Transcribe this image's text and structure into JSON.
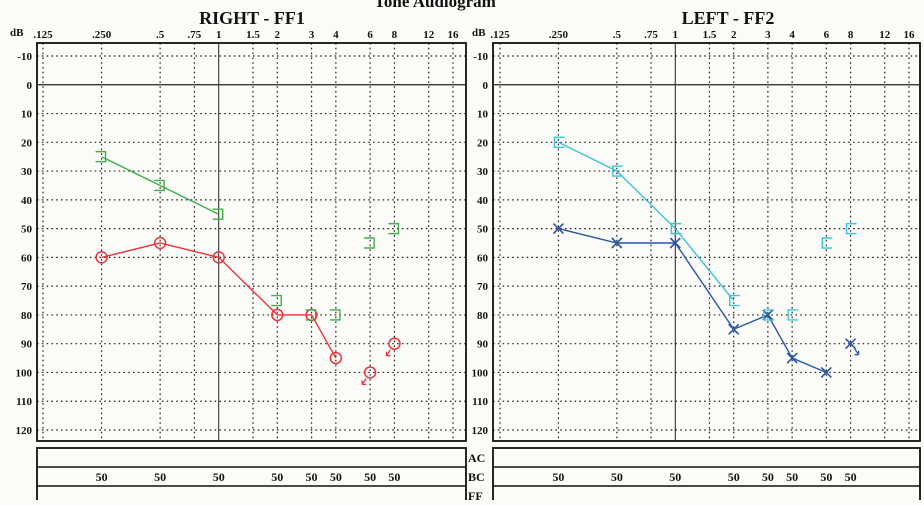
{
  "header": {
    "title": "Tone Audiogram"
  },
  "chart_data": [
    {
      "type": "line",
      "title": "RIGHT - FF1",
      "ylabel": "dB",
      "y_reversed": true,
      "ylim": [
        -10,
        120
      ],
      "yticks": [
        "-10",
        "0",
        "10",
        "20",
        "30",
        "40",
        "50",
        "60",
        "70",
        "80",
        "90",
        "100",
        "110",
        "120"
      ],
      "x_scale": "log",
      "x_ticks": [
        {
          "f": 0.125,
          "label": ".125"
        },
        {
          "f": 0.25,
          "label": ".250"
        },
        {
          "f": 0.5,
          "label": ".5"
        },
        {
          "f": 0.75,
          "label": ".75"
        },
        {
          "f": 1,
          "label": "1"
        },
        {
          "f": 1.5,
          "label": "1.5"
        },
        {
          "f": 2,
          "label": "2"
        },
        {
          "f": 3,
          "label": "3"
        },
        {
          "f": 4,
          "label": "4"
        },
        {
          "f": 6,
          "label": "6"
        },
        {
          "f": 8,
          "label": "8"
        },
        {
          "f": 12,
          "label": "12"
        },
        {
          "f": 16,
          "label": "16"
        }
      ],
      "series": [
        {
          "symbol": "circle",
          "color": "#e8353d",
          "connected_x": [
            0.25,
            0.5,
            1,
            2,
            3,
            4
          ],
          "connected_y": [
            60,
            55,
            60,
            80,
            80,
            95
          ],
          "points": [
            {
              "x": 0.25,
              "y": 60
            },
            {
              "x": 0.5,
              "y": 55
            },
            {
              "x": 1,
              "y": 60
            },
            {
              "x": 2,
              "y": 80
            },
            {
              "x": 3,
              "y": 80
            },
            {
              "x": 4,
              "y": 95
            },
            {
              "x": 6,
              "y": 100,
              "no_response": true
            },
            {
              "x": 8,
              "y": 90,
              "no_response": true
            }
          ]
        },
        {
          "symbol": "bracket-right",
          "color": "#3fae49",
          "connected_x": [
            0.25,
            0.5,
            1
          ],
          "connected_y": [
            25,
            35,
            45
          ],
          "points": [
            {
              "x": 0.25,
              "y": 25
            },
            {
              "x": 0.5,
              "y": 35
            },
            {
              "x": 1,
              "y": 45
            },
            {
              "x": 2,
              "y": 75
            },
            {
              "x": 3,
              "y": 80
            },
            {
              "x": 4,
              "y": 80
            },
            {
              "x": 6,
              "y": 55
            },
            {
              "x": 8,
              "y": 50
            }
          ]
        }
      ],
      "table": {
        "rows": [
          "AC",
          "BC",
          "FF"
        ],
        "BC": [
          {
            "f": 0.25,
            "v": "50"
          },
          {
            "f": 0.5,
            "v": "50"
          },
          {
            "f": 1,
            "v": "50"
          },
          {
            "f": 2,
            "v": "50"
          },
          {
            "f": 3,
            "v": "50"
          },
          {
            "f": 4,
            "v": "50"
          },
          {
            "f": 6,
            "v": "50"
          },
          {
            "f": 8,
            "v": "50"
          }
        ]
      }
    },
    {
      "type": "line",
      "title": "LEFT - FF2",
      "ylabel": "dB",
      "y_reversed": true,
      "ylim": [
        -10,
        120
      ],
      "yticks": [
        "-10",
        "0",
        "10",
        "20",
        "30",
        "40",
        "50",
        "60",
        "70",
        "80",
        "90",
        "100",
        "110",
        "120"
      ],
      "x_scale": "log",
      "x_ticks": [
        {
          "f": 0.125,
          "label": ".125"
        },
        {
          "f": 0.25,
          "label": ".250"
        },
        {
          "f": 0.5,
          "label": ".5"
        },
        {
          "f": 0.75,
          "label": ".75"
        },
        {
          "f": 1,
          "label": "1"
        },
        {
          "f": 1.5,
          "label": "1.5"
        },
        {
          "f": 2,
          "label": "2"
        },
        {
          "f": 3,
          "label": "3"
        },
        {
          "f": 4,
          "label": "4"
        },
        {
          "f": 6,
          "label": "6"
        },
        {
          "f": 8,
          "label": "8"
        },
        {
          "f": 12,
          "label": "12"
        },
        {
          "f": 16,
          "label": "16"
        }
      ],
      "series": [
        {
          "symbol": "x",
          "color": "#2856a8",
          "connected_x": [
            0.25,
            0.5,
            1,
            2,
            3,
            4,
            6
          ],
          "connected_y": [
            50,
            55,
            55,
            85,
            80,
            95,
            100
          ],
          "points": [
            {
              "x": 0.25,
              "y": 50
            },
            {
              "x": 0.5,
              "y": 55
            },
            {
              "x": 1,
              "y": 55
            },
            {
              "x": 2,
              "y": 85
            },
            {
              "x": 3,
              "y": 80
            },
            {
              "x": 4,
              "y": 95
            },
            {
              "x": 6,
              "y": 100
            },
            {
              "x": 8,
              "y": 90,
              "no_response": true
            }
          ]
        },
        {
          "symbol": "bracket-left",
          "color": "#3cc3d8",
          "connected_x": [
            0.25,
            0.5,
            1,
            2
          ],
          "connected_y": [
            20,
            30,
            50,
            75
          ],
          "points": [
            {
              "x": 0.25,
              "y": 20
            },
            {
              "x": 0.5,
              "y": 30
            },
            {
              "x": 1,
              "y": 50
            },
            {
              "x": 2,
              "y": 75
            },
            {
              "x": 3,
              "y": 80
            },
            {
              "x": 4,
              "y": 80
            },
            {
              "x": 6,
              "y": 55
            },
            {
              "x": 8,
              "y": 50
            }
          ]
        }
      ],
      "table": {
        "rows": [
          "AC",
          "BC",
          "FF"
        ],
        "BC": [
          {
            "f": 0.25,
            "v": "50"
          },
          {
            "f": 0.5,
            "v": "50"
          },
          {
            "f": 1,
            "v": "50"
          },
          {
            "f": 2,
            "v": "50"
          },
          {
            "f": 3,
            "v": "50"
          },
          {
            "f": 4,
            "v": "50"
          },
          {
            "f": 6,
            "v": "50"
          },
          {
            "f": 8,
            "v": "50"
          }
        ]
      }
    }
  ]
}
